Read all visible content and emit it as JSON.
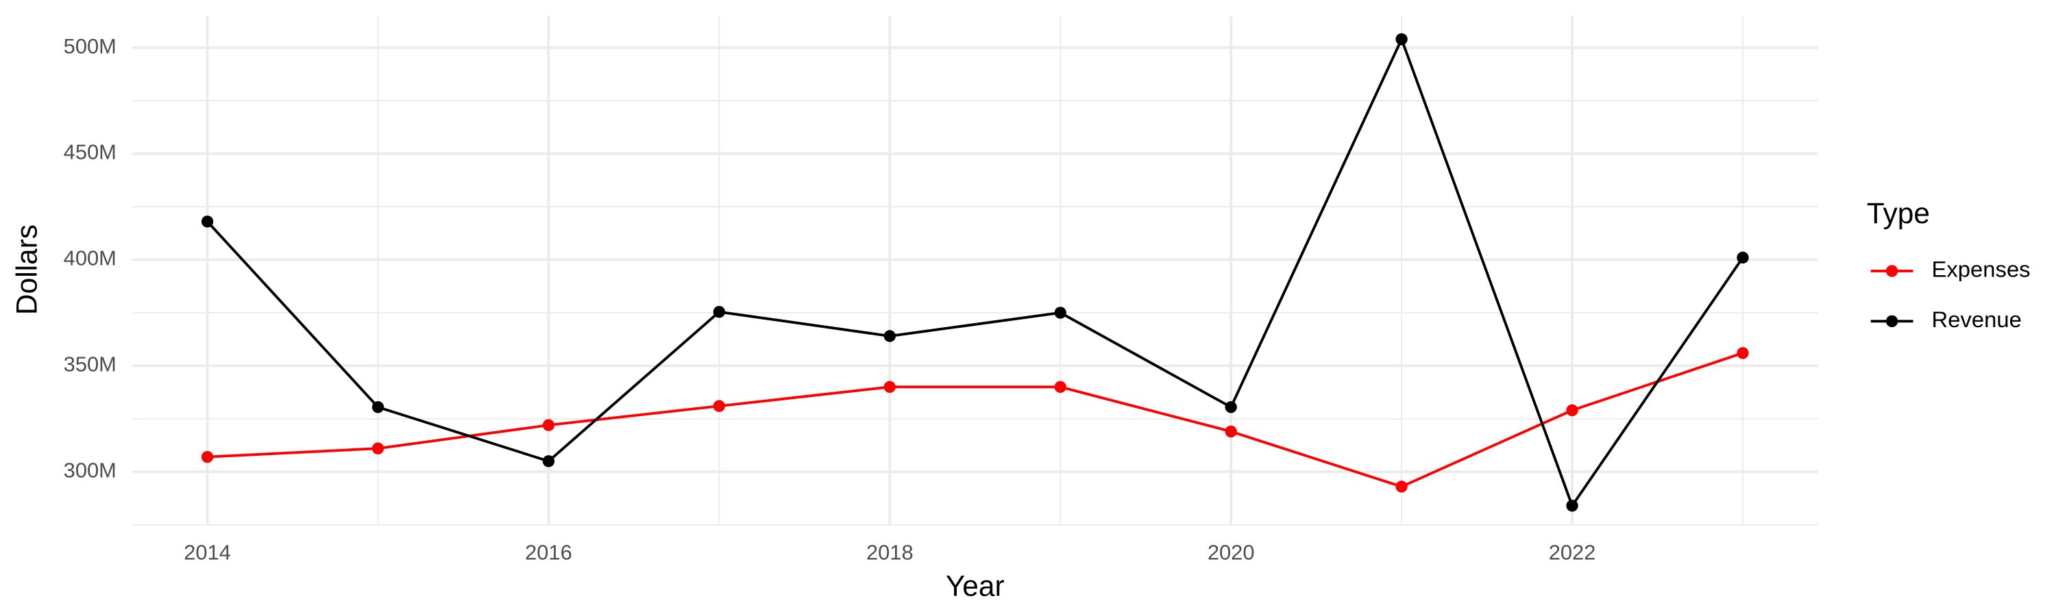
{
  "chart_data": {
    "type": "line",
    "x_label": "Year",
    "y_label": "Dollars",
    "legend_title": "Type",
    "legend": "right",
    "grid": true,
    "x": [
      2014,
      2015,
      2016,
      2017,
      2018,
      2019,
      2020,
      2021,
      2022,
      2023
    ],
    "series": [
      {
        "name": "Expenses",
        "color": "#ff0000",
        "values": [
          307000000,
          311000000,
          322000000,
          331000000,
          340000000,
          340000000,
          319000000,
          293000000,
          329000000,
          356000000
        ]
      },
      {
        "name": "Revenue",
        "color": "#000000",
        "values": [
          418000000,
          330500000,
          305000000,
          375400000,
          364000000,
          375000000,
          330500000,
          504000000,
          284000000,
          401000000
        ]
      }
    ],
    "xlim": [
      2013.56,
      2023.44
    ],
    "xticks": [
      2014,
      2016,
      2018,
      2020,
      2022
    ],
    "ylim": [
      275000000,
      515000000
    ],
    "yticks": [
      {
        "value": 300000000,
        "label": "300M"
      },
      {
        "value": 350000000,
        "label": "350M"
      },
      {
        "value": 400000000,
        "label": "400M"
      },
      {
        "value": 450000000,
        "label": "450M"
      },
      {
        "value": 500000000,
        "label": "500M"
      }
    ]
  }
}
